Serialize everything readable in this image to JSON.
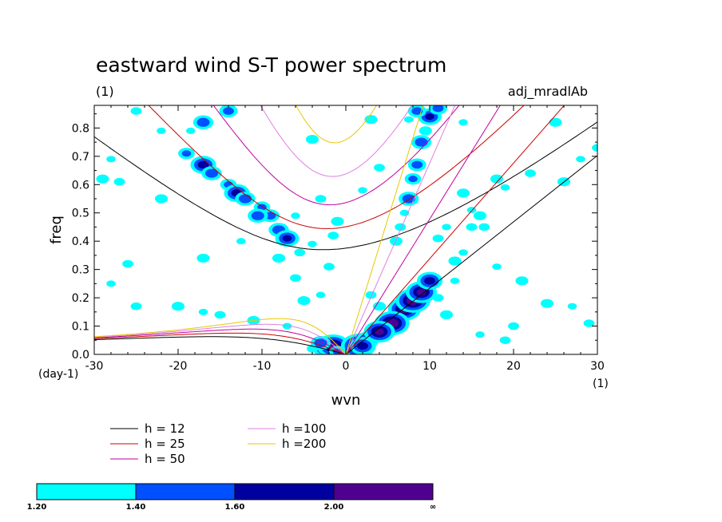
{
  "chart_data": {
    "type": "contour",
    "title": "eastward wind S-T power spectrum",
    "subtitle_left": "(1)",
    "subtitle_right": "adj_mradlAb",
    "xlabel": "wvn",
    "ylabel": "freq",
    "x_unit_label": "(1)",
    "y_unit_label": "(day-1)",
    "xlim": [
      -30,
      30
    ],
    "ylim": [
      0,
      0.88
    ],
    "xticks": [
      -30,
      -20,
      -10,
      0,
      10,
      20,
      30
    ],
    "yticks": [
      0.0,
      0.1,
      0.2,
      0.3,
      0.4,
      0.5,
      0.6,
      0.7,
      0.8
    ],
    "ytick_labels": [
      "0.0",
      "0.1",
      "0.2",
      "0.3",
      "0.4",
      "0.5",
      "0.6",
      "0.7",
      "0.8"
    ],
    "dispersion_curves": [
      {
        "label": "h = 12",
        "h": 12,
        "color": "#000000"
      },
      {
        "label": "h = 25",
        "h": 25,
        "color": "#cc0000"
      },
      {
        "label": "h = 50",
        "h": 50,
        "color": "#c000a0"
      },
      {
        "label": "h =100",
        "h": 100,
        "color": "#e080e0"
      },
      {
        "label": "h =200",
        "h": 200,
        "color": "#e8c800"
      }
    ],
    "colorbar": {
      "levels": [
        "1.20",
        "1.40",
        "1.60",
        "2.00",
        "∞"
      ],
      "colors": [
        "#00ffff",
        "#0050ff",
        "#0000a0",
        "#500090"
      ]
    },
    "power_patches": [
      {
        "x": -19,
        "y": 0.71,
        "level": 1
      },
      {
        "x": -17,
        "y": 0.67,
        "level": 2
      },
      {
        "x": -16,
        "y": 0.64,
        "level": 1
      },
      {
        "x": -14,
        "y": 0.6,
        "level": 1
      },
      {
        "x": -13,
        "y": 0.57,
        "level": 2
      },
      {
        "x": -12,
        "y": 0.55,
        "level": 1
      },
      {
        "x": -10,
        "y": 0.52,
        "level": 1
      },
      {
        "x": -9,
        "y": 0.49,
        "level": 1
      },
      {
        "x": -8,
        "y": 0.44,
        "level": 1
      },
      {
        "x": -7,
        "y": 0.41,
        "level": 2
      },
      {
        "x": -5.5,
        "y": 0.36,
        "level": 0
      },
      {
        "x": -17,
        "y": 0.82,
        "level": 1
      },
      {
        "x": -18.5,
        "y": 0.79,
        "level": 0
      },
      {
        "x": -14,
        "y": 0.86,
        "level": 1
      },
      {
        "x": -10.5,
        "y": 0.49,
        "level": 1
      },
      {
        "x": -22,
        "y": 0.79,
        "level": 0
      },
      {
        "x": -25,
        "y": 0.86,
        "level": 0
      },
      {
        "x": -29,
        "y": 0.62,
        "level": 0
      },
      {
        "x": -28,
        "y": 0.69,
        "level": 0
      },
      {
        "x": -27,
        "y": 0.61,
        "level": 0
      },
      {
        "x": -22,
        "y": 0.55,
        "level": 0
      },
      {
        "x": -12.5,
        "y": 0.4,
        "level": 0
      },
      {
        "x": -6,
        "y": 0.27,
        "level": 0
      },
      {
        "x": -5,
        "y": 0.19,
        "level": 0
      },
      {
        "x": -3,
        "y": 0.21,
        "level": 0
      },
      {
        "x": -2,
        "y": 0.31,
        "level": 0
      },
      {
        "x": -8,
        "y": 0.34,
        "level": 0
      },
      {
        "x": -4,
        "y": 0.39,
        "level": 0
      },
      {
        "x": -1.5,
        "y": 0.42,
        "level": 0
      },
      {
        "x": -1,
        "y": 0.47,
        "level": 0
      },
      {
        "x": -28,
        "y": 0.25,
        "level": 0
      },
      {
        "x": -25,
        "y": 0.17,
        "level": 0
      },
      {
        "x": -20,
        "y": 0.17,
        "level": 0
      },
      {
        "x": -17,
        "y": 0.15,
        "level": 0
      },
      {
        "x": -15,
        "y": 0.14,
        "level": 0
      },
      {
        "x": -11,
        "y": 0.12,
        "level": 0
      },
      {
        "x": -7,
        "y": 0.1,
        "level": 0
      },
      {
        "x": -26,
        "y": 0.32,
        "level": 0
      },
      {
        "x": -17,
        "y": 0.34,
        "level": 0
      },
      {
        "x": -6,
        "y": 0.49,
        "level": 0
      },
      {
        "x": -3,
        "y": 0.55,
        "level": 0
      },
      {
        "x": -4,
        "y": 0.76,
        "level": 0
      },
      {
        "x": -2.5,
        "y": 0.02,
        "level": 2
      },
      {
        "x": -1.5,
        "y": 0.03,
        "level": 3
      },
      {
        "x": -3,
        "y": 0.04,
        "level": 1
      },
      {
        "x": -1,
        "y": 0.01,
        "level": 1
      },
      {
        "x": -4,
        "y": 0.02,
        "level": 0
      },
      {
        "x": 1.5,
        "y": 0.03,
        "level": 3
      },
      {
        "x": 2.5,
        "y": 0.05,
        "level": 2
      },
      {
        "x": 3.5,
        "y": 0.08,
        "level": 1
      },
      {
        "x": 5,
        "y": 0.1,
        "level": 2
      },
      {
        "x": 6,
        "y": 0.13,
        "level": 2
      },
      {
        "x": 7,
        "y": 0.16,
        "level": 3
      },
      {
        "x": 8,
        "y": 0.19,
        "level": 3
      },
      {
        "x": 9,
        "y": 0.22,
        "level": 3
      },
      {
        "x": 10,
        "y": 0.26,
        "level": 2
      },
      {
        "x": 5.5,
        "y": 0.11,
        "level": 3
      },
      {
        "x": 4,
        "y": 0.08,
        "level": 3
      },
      {
        "x": 2,
        "y": 0.03,
        "level": 2
      },
      {
        "x": 7.5,
        "y": 0.55,
        "level": 1
      },
      {
        "x": 8,
        "y": 0.62,
        "level": 1
      },
      {
        "x": 8.5,
        "y": 0.67,
        "level": 1
      },
      {
        "x": 9,
        "y": 0.75,
        "level": 1
      },
      {
        "x": 10,
        "y": 0.84,
        "level": 2
      },
      {
        "x": 11,
        "y": 0.87,
        "level": 1
      },
      {
        "x": 9.5,
        "y": 0.79,
        "level": 0
      },
      {
        "x": 7,
        "y": 0.5,
        "level": 0
      },
      {
        "x": 6.5,
        "y": 0.45,
        "level": 0
      },
      {
        "x": 6,
        "y": 0.4,
        "level": 0
      },
      {
        "x": 7.5,
        "y": 0.83,
        "level": 0
      },
      {
        "x": 8.5,
        "y": 0.86,
        "level": 1
      },
      {
        "x": 13,
        "y": 0.33,
        "level": 0
      },
      {
        "x": 14,
        "y": 0.36,
        "level": 0
      },
      {
        "x": 15,
        "y": 0.45,
        "level": 0
      },
      {
        "x": 16,
        "y": 0.49,
        "level": 0
      },
      {
        "x": 12,
        "y": 0.45,
        "level": 0
      },
      {
        "x": 11,
        "y": 0.41,
        "level": 0
      },
      {
        "x": 14,
        "y": 0.57,
        "level": 0
      },
      {
        "x": 15,
        "y": 0.51,
        "level": 0
      },
      {
        "x": 16.5,
        "y": 0.45,
        "level": 0
      },
      {
        "x": 18,
        "y": 0.62,
        "level": 0
      },
      {
        "x": 19,
        "y": 0.59,
        "level": 0
      },
      {
        "x": 22,
        "y": 0.64,
        "level": 0
      },
      {
        "x": 26,
        "y": 0.61,
        "level": 0
      },
      {
        "x": 28,
        "y": 0.69,
        "level": 0
      },
      {
        "x": 30,
        "y": 0.73,
        "level": 0
      },
      {
        "x": 25,
        "y": 0.82,
        "level": 0
      },
      {
        "x": 14,
        "y": 0.82,
        "level": 0
      },
      {
        "x": 11,
        "y": 0.2,
        "level": 0
      },
      {
        "x": 12,
        "y": 0.14,
        "level": 0
      },
      {
        "x": 16,
        "y": 0.07,
        "level": 0
      },
      {
        "x": 20,
        "y": 0.1,
        "level": 0
      },
      {
        "x": 24,
        "y": 0.18,
        "level": 0
      },
      {
        "x": 27,
        "y": 0.17,
        "level": 0
      },
      {
        "x": 29,
        "y": 0.11,
        "level": 0
      },
      {
        "x": 21,
        "y": 0.26,
        "level": 0
      },
      {
        "x": 18,
        "y": 0.31,
        "level": 0
      },
      {
        "x": 3,
        "y": 0.21,
        "level": 0
      },
      {
        "x": 4,
        "y": 0.17,
        "level": 0
      },
      {
        "x": 2,
        "y": 0.58,
        "level": 0
      },
      {
        "x": 4,
        "y": 0.66,
        "level": 0
      },
      {
        "x": 3,
        "y": 0.83,
        "level": 0
      },
      {
        "x": 13,
        "y": 0.26,
        "level": 0
      },
      {
        "x": 19,
        "y": 0.05,
        "level": 0
      }
    ]
  }
}
